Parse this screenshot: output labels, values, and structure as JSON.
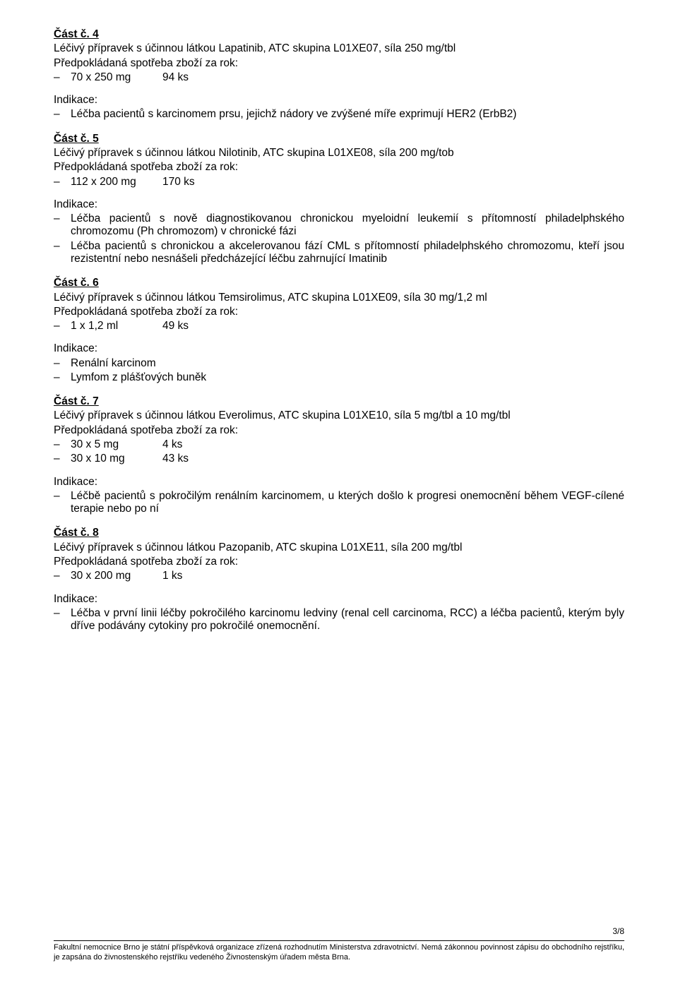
{
  "sections": [
    {
      "title": "Část č. 4",
      "desc": "Léčivý přípravek s účinnou látkou Lapatinib, ATC skupina L01XE07, síla 250 mg/tbl",
      "consumption_label": "Předpokládaná spotřeba zboží za rok:",
      "consumption": [
        {
          "c1": "70 x 250 mg",
          "c2": "94 ks"
        }
      ],
      "indication_label": "Indikace:",
      "indications": [
        "Léčba pacientů s karcinomem prsu, jejichž nádory ve zvýšené míře exprimují HER2 (ErbB2)"
      ]
    },
    {
      "title": "Část č. 5",
      "desc": "Léčivý přípravek s účinnou látkou Nilotinib, ATC skupina L01XE08, síla 200 mg/tob",
      "consumption_label": "Předpokládaná spotřeba zboží za rok:",
      "consumption": [
        {
          "c1": "112 x 200 mg",
          "c2": "170 ks"
        }
      ],
      "indication_label": "Indikace:",
      "indications": [
        "Léčba pacientů s nově diagnostikovanou chronickou myeloidní leukemií s přítomností philadelphského chromozomu (Ph chromozom) v chronické fázi",
        "Léčba pacientů s chronickou a akcelerovanou fází CML s přítomností philadelphského chromozomu, kteří jsou rezistentní nebo nesnášeli předcházející léčbu zahrnující Imatinib"
      ]
    },
    {
      "title": "Část č. 6",
      "desc": "Léčivý přípravek s účinnou látkou Temsirolimus, ATC skupina L01XE09, síla 30 mg/1,2 ml",
      "consumption_label": "Předpokládaná spotřeba zboží za rok:",
      "consumption": [
        {
          "c1": "1 x 1,2 ml",
          "c2": "49 ks"
        }
      ],
      "indication_label": "Indikace:",
      "indications": [
        "Renální karcinom",
        "Lymfom z plášťových buněk"
      ]
    },
    {
      "title": "Část č. 7",
      "desc": "Léčivý přípravek s účinnou látkou Everolimus, ATC skupina L01XE10, síla 5 mg/tbl a 10 mg/tbl",
      "consumption_label": "Předpokládaná spotřeba zboží za rok:",
      "consumption": [
        {
          "c1": "30 x 5 mg",
          "c2": "4 ks"
        },
        {
          "c1": "30 x 10 mg",
          "c2": "43 ks"
        }
      ],
      "indication_label": "Indikace:",
      "indications": [
        "Léčbě pacientů s pokročilým renálním karcinomem, u kterých došlo k progresi onemocnění během VEGF-cílené terapie nebo po ní"
      ]
    },
    {
      "title": "Část č. 8",
      "desc": "Léčivý přípravek s účinnou látkou Pazopanib, ATC skupina L01XE11, síla 200 mg/tbl",
      "consumption_label": "Předpokládaná spotřeba zboží za rok:",
      "consumption": [
        {
          "c1": "30 x 200 mg",
          "c2": "1 ks"
        }
      ],
      "indication_label": "Indikace:",
      "indications": [
        "Léčba v první linii léčby pokročilého karcinomu ledviny (renal cell carcinoma, RCC) a  léčba pacientů, kterým byly dříve podávány cytokiny pro pokročilé onemocnění."
      ]
    }
  ],
  "footer": {
    "page_number": "3/8",
    "text": "Fakultní nemocnice Brno je státní  příspěvková organizace zřízená rozhodnutím Ministerstva zdravotnictví. Nemá zákonnou povinnost zápisu do obchodního rejstříku, je zapsána do živnostenského rejstříku vedeného Živnostenským úřadem města Brna."
  },
  "dash": "–"
}
